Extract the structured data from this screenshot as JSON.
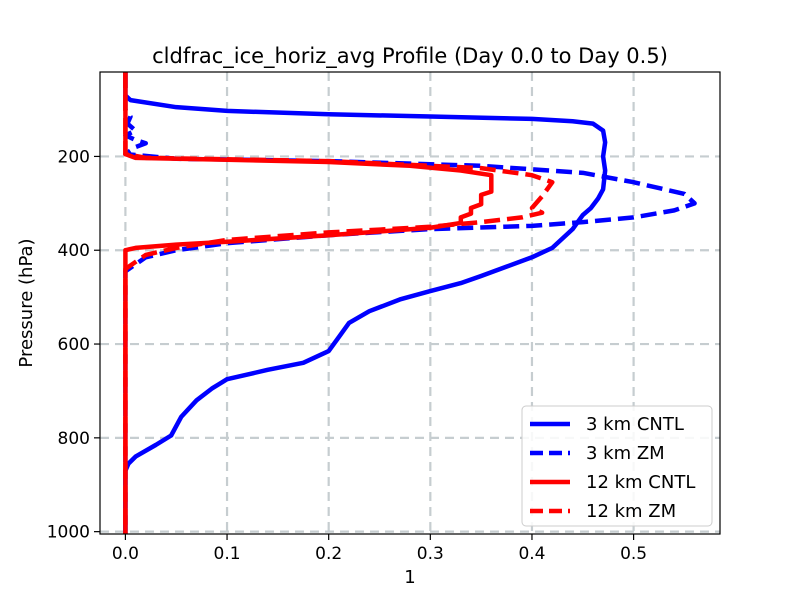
{
  "chart_data": {
    "type": "line",
    "title": "cldfrac_ice_horiz_avg Profile (Day 0.0 to Day 0.5)",
    "xlabel": "1",
    "ylabel": "Pressure (hPa)",
    "xlim": [
      -0.025,
      0.585
    ],
    "ylim": [
      1005,
      20
    ],
    "y_inverted": true,
    "x_ticks": [
      0.0,
      0.1,
      0.2,
      0.3,
      0.4,
      0.5
    ],
    "x_tick_labels": [
      "0.0",
      "0.1",
      "0.2",
      "0.3",
      "0.4",
      "0.5"
    ],
    "y_ticks": [
      200,
      400,
      600,
      800,
      1000
    ],
    "y_tick_labels": [
      "200",
      "400",
      "600",
      "800",
      "1000"
    ],
    "grid": true,
    "legend_position": "lower-right",
    "series": [
      {
        "name": "3 km CNTL",
        "color": "#0000ff",
        "dash": "solid",
        "points": [
          [
            0.0,
            20
          ],
          [
            0.0,
            70
          ],
          [
            0.005,
            80
          ],
          [
            0.05,
            95
          ],
          [
            0.1,
            103
          ],
          [
            0.2,
            110
          ],
          [
            0.3,
            115
          ],
          [
            0.4,
            120
          ],
          [
            0.44,
            125
          ],
          [
            0.46,
            130
          ],
          [
            0.47,
            145
          ],
          [
            0.472,
            170
          ],
          [
            0.47,
            200
          ],
          [
            0.472,
            230
          ],
          [
            0.47,
            270
          ],
          [
            0.465,
            290
          ],
          [
            0.458,
            310
          ],
          [
            0.45,
            325
          ],
          [
            0.445,
            340
          ],
          [
            0.44,
            355
          ],
          [
            0.43,
            375
          ],
          [
            0.42,
            395
          ],
          [
            0.4,
            415
          ],
          [
            0.375,
            435
          ],
          [
            0.35,
            455
          ],
          [
            0.33,
            470
          ],
          [
            0.3,
            487
          ],
          [
            0.27,
            505
          ],
          [
            0.24,
            530
          ],
          [
            0.22,
            555
          ],
          [
            0.21,
            585
          ],
          [
            0.2,
            615
          ],
          [
            0.175,
            640
          ],
          [
            0.14,
            655
          ],
          [
            0.1,
            675
          ],
          [
            0.085,
            695
          ],
          [
            0.07,
            720
          ],
          [
            0.055,
            755
          ],
          [
            0.045,
            795
          ],
          [
            0.03,
            815
          ],
          [
            0.01,
            840
          ],
          [
            0.003,
            855
          ],
          [
            0.0,
            870
          ],
          [
            0.0,
            1005
          ]
        ]
      },
      {
        "name": "3 km ZM",
        "color": "#0000ff",
        "dash": "dashed",
        "points": [
          [
            0.0,
            20
          ],
          [
            0.0,
            100
          ],
          [
            0.005,
            115
          ],
          [
            0.002,
            130
          ],
          [
            0.01,
            145
          ],
          [
            0.0,
            155
          ],
          [
            0.01,
            165
          ],
          [
            0.02,
            172
          ],
          [
            0.01,
            180
          ],
          [
            0.0,
            195
          ],
          [
            0.05,
            205
          ],
          [
            0.2,
            210
          ],
          [
            0.35,
            220
          ],
          [
            0.45,
            235
          ],
          [
            0.5,
            255
          ],
          [
            0.55,
            280
          ],
          [
            0.56,
            300
          ],
          [
            0.54,
            315
          ],
          [
            0.5,
            330
          ],
          [
            0.45,
            340
          ],
          [
            0.4,
            348
          ],
          [
            0.3,
            355
          ],
          [
            0.2,
            368
          ],
          [
            0.1,
            385
          ],
          [
            0.05,
            400
          ],
          [
            0.02,
            415
          ],
          [
            0.01,
            430
          ],
          [
            0.0,
            445
          ],
          [
            0.0,
            1005
          ]
        ]
      },
      {
        "name": "12 km CNTL",
        "color": "#ff0000",
        "dash": "solid",
        "points": [
          [
            0.0,
            20
          ],
          [
            0.0,
            195
          ],
          [
            0.01,
            203
          ],
          [
            0.1,
            207
          ],
          [
            0.2,
            212
          ],
          [
            0.28,
            220
          ],
          [
            0.33,
            230
          ],
          [
            0.36,
            240
          ],
          [
            0.36,
            275
          ],
          [
            0.35,
            282
          ],
          [
            0.35,
            302
          ],
          [
            0.34,
            310
          ],
          [
            0.34,
            322
          ],
          [
            0.33,
            330
          ],
          [
            0.33,
            342
          ],
          [
            0.3,
            352
          ],
          [
            0.25,
            360
          ],
          [
            0.2,
            368
          ],
          [
            0.15,
            375
          ],
          [
            0.1,
            382
          ],
          [
            0.05,
            388
          ],
          [
            0.01,
            395
          ],
          [
            0.0,
            400
          ],
          [
            0.0,
            1005
          ]
        ]
      },
      {
        "name": "12 km ZM",
        "color": "#ff0000",
        "dash": "dashed",
        "points": [
          [
            0.0,
            20
          ],
          [
            0.0,
            195
          ],
          [
            0.02,
            203
          ],
          [
            0.2,
            210
          ],
          [
            0.35,
            225
          ],
          [
            0.4,
            240
          ],
          [
            0.42,
            255
          ],
          [
            0.41,
            285
          ],
          [
            0.4,
            310
          ],
          [
            0.41,
            320
          ],
          [
            0.39,
            330
          ],
          [
            0.35,
            340
          ],
          [
            0.3,
            350
          ],
          [
            0.2,
            362
          ],
          [
            0.1,
            378
          ],
          [
            0.05,
            395
          ],
          [
            0.02,
            410
          ],
          [
            0.01,
            425
          ],
          [
            0.0,
            440
          ],
          [
            0.0,
            1005
          ]
        ]
      }
    ]
  }
}
